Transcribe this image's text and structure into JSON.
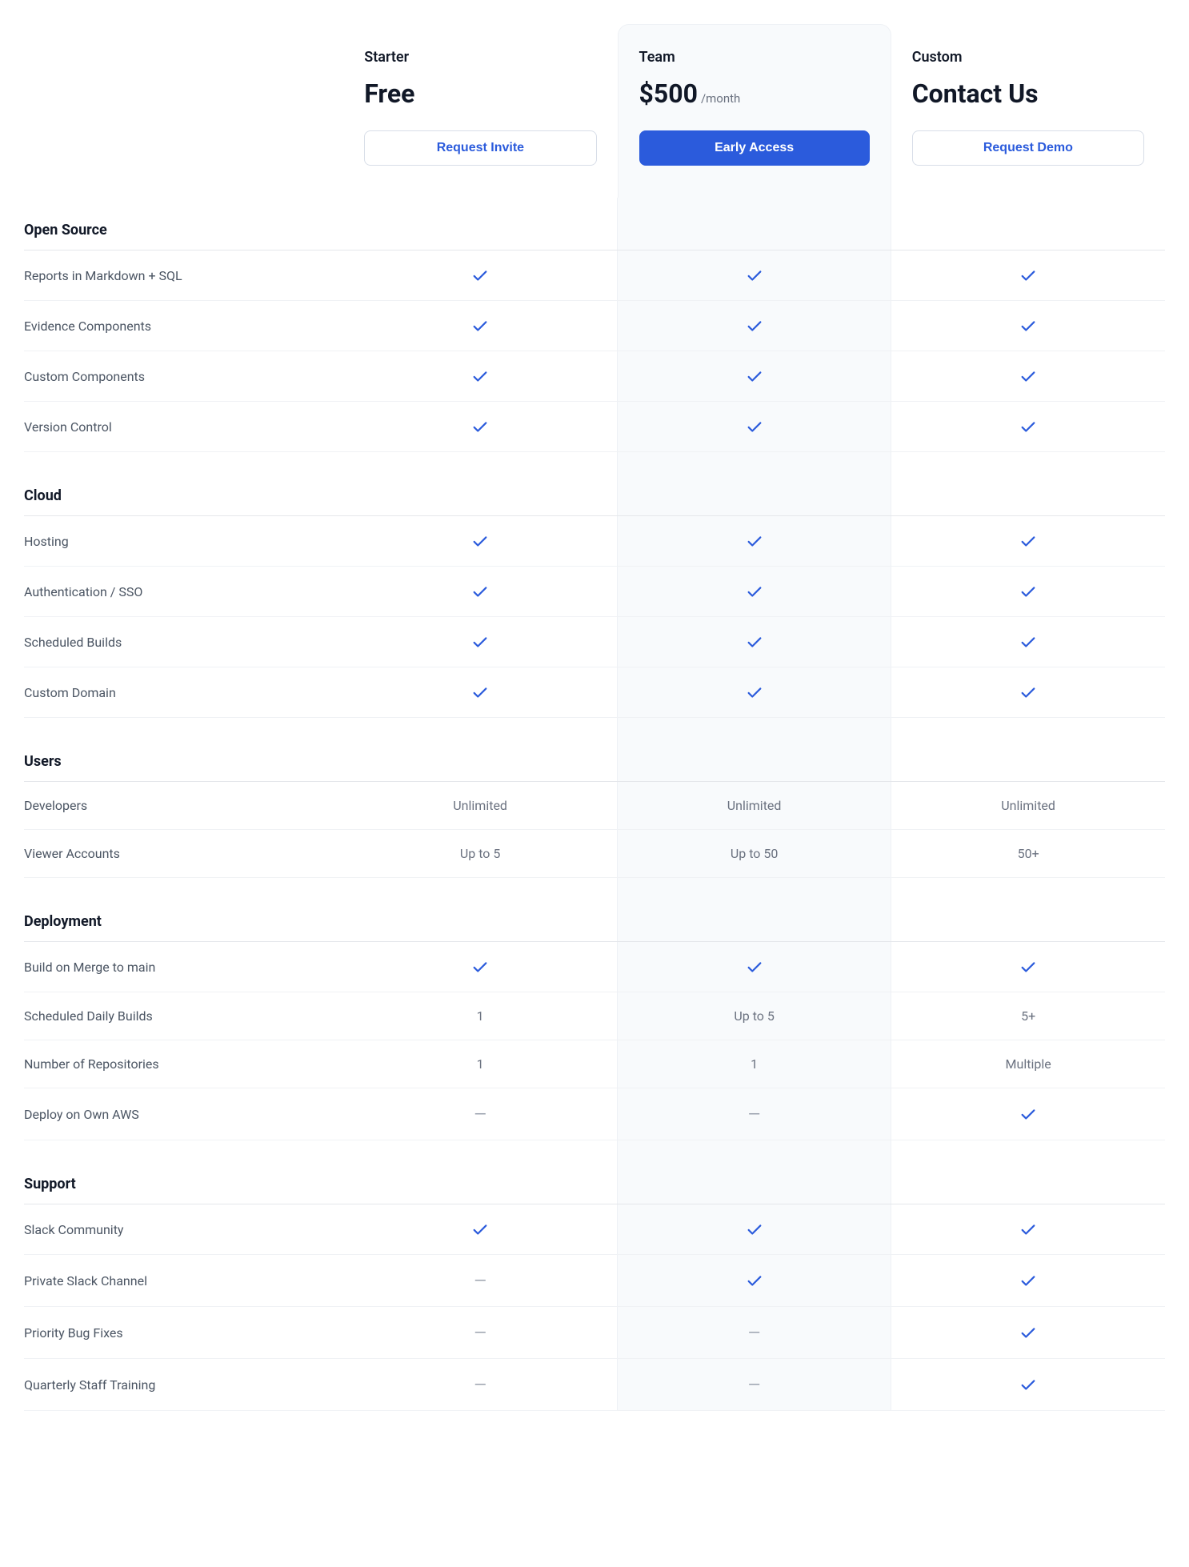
{
  "brand_color": "#2b5bdc",
  "border_color": "#e5e7eb",
  "highlight_bg": "#f8fafc",
  "plans": [
    {
      "key": "starter",
      "name": "Starter",
      "price": "Free",
      "period": "",
      "cta": "Request Invite",
      "cta_style": "outline",
      "highlighted": false
    },
    {
      "key": "team",
      "name": "Team",
      "price": "$500",
      "period": "/month",
      "cta": "Early Access",
      "cta_style": "primary",
      "highlighted": true
    },
    {
      "key": "custom",
      "name": "Custom",
      "price": "Contact Us",
      "period": "",
      "cta": "Request Demo",
      "cta_style": "outline",
      "highlighted": false
    }
  ],
  "sections": [
    {
      "title": "Open Source",
      "rows": [
        {
          "label": "Reports in Markdown + SQL",
          "values": [
            "check",
            "check",
            "check"
          ]
        },
        {
          "label": "Evidence Components",
          "values": [
            "check",
            "check",
            "check"
          ]
        },
        {
          "label": "Custom Components",
          "values": [
            "check",
            "check",
            "check"
          ]
        },
        {
          "label": "Version Control",
          "values": [
            "check",
            "check",
            "check"
          ]
        }
      ]
    },
    {
      "title": "Cloud",
      "rows": [
        {
          "label": "Hosting",
          "values": [
            "check",
            "check",
            "check"
          ]
        },
        {
          "label": "Authentication / SSO",
          "values": [
            "check",
            "check",
            "check"
          ]
        },
        {
          "label": "Scheduled Builds",
          "values": [
            "check",
            "check",
            "check"
          ]
        },
        {
          "label": "Custom Domain",
          "values": [
            "check",
            "check",
            "check"
          ]
        }
      ]
    },
    {
      "title": "Users",
      "rows": [
        {
          "label": "Developers",
          "values": [
            "Unlimited",
            "Unlimited",
            "Unlimited"
          ]
        },
        {
          "label": "Viewer Accounts",
          "values": [
            "Up to 5",
            "Up to 50",
            "50+"
          ]
        }
      ]
    },
    {
      "title": "Deployment",
      "rows": [
        {
          "label": "Build on Merge to main",
          "values": [
            "check",
            "check",
            "check"
          ]
        },
        {
          "label": "Scheduled Daily Builds",
          "values": [
            "1",
            "Up to 5",
            "5+"
          ]
        },
        {
          "label": "Number of Repositories",
          "values": [
            "1",
            "1",
            "Multiple"
          ]
        },
        {
          "label": "Deploy on Own AWS",
          "values": [
            "dash",
            "dash",
            "check"
          ]
        }
      ]
    },
    {
      "title": "Support",
      "rows": [
        {
          "label": "Slack Community",
          "values": [
            "check",
            "check",
            "check"
          ]
        },
        {
          "label": "Private Slack Channel",
          "values": [
            "dash",
            "check",
            "check"
          ]
        },
        {
          "label": "Priority Bug Fixes",
          "values": [
            "dash",
            "dash",
            "check"
          ]
        },
        {
          "label": "Quarterly Staff Training",
          "values": [
            "dash",
            "dash",
            "check"
          ]
        }
      ]
    }
  ]
}
